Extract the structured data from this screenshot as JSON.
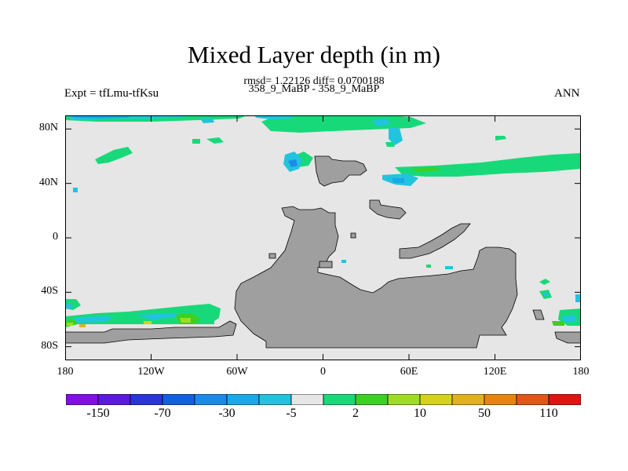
{
  "title": "Mixed Layer depth (in m)",
  "subtitle_stats": "rmsd= 1.22126 diff= 0.0700188",
  "subtitle_cases": "358_9_MaBP - 358_9_MaBP",
  "left_label": "Expt = tfLmu-tfKsu",
  "right_label": "ANN",
  "map": {
    "projection": "cylindrical equidistant",
    "lon_range": [
      -180,
      180
    ],
    "lat_range": [
      -90,
      90
    ],
    "y_ticks": [
      {
        "lat": 80,
        "label": "80N"
      },
      {
        "lat": 40,
        "label": "40N"
      },
      {
        "lat": 0,
        "label": "0"
      },
      {
        "lat": -40,
        "label": "40S"
      },
      {
        "lat": -80,
        "label": "80S"
      }
    ],
    "x_ticks": [
      {
        "lon": -180,
        "label": "180"
      },
      {
        "lon": -120,
        "label": "120W"
      },
      {
        "lon": -60,
        "label": "60W"
      },
      {
        "lon": 0,
        "label": "0"
      },
      {
        "lon": 60,
        "label": "60E"
      },
      {
        "lon": 120,
        "label": "120E"
      },
      {
        "lon": 180,
        "label": "180"
      }
    ],
    "background_color": "#e6e6e6",
    "land_color": "#9f9f9f"
  },
  "colorbar": {
    "colors": [
      "#7f0fe6",
      "#5a19e0",
      "#2a34d9",
      "#145fe0",
      "#1e8ae8",
      "#19a8e8",
      "#22c4dd",
      "#e6e6e6",
      "#17d97a",
      "#3ecf24",
      "#9fdc24",
      "#d4d219",
      "#e1b21c",
      "#e5850f",
      "#e3551b",
      "#e11414"
    ],
    "labels": [
      {
        "boundary": 1,
        "text": "-150"
      },
      {
        "boundary": 3,
        "text": "-70"
      },
      {
        "boundary": 5,
        "text": "-30"
      },
      {
        "boundary": 7,
        "text": "-5"
      },
      {
        "boundary": 9,
        "text": "2"
      },
      {
        "boundary": 11,
        "text": "10"
      },
      {
        "boundary": 13,
        "text": "50"
      },
      {
        "boundary": 15,
        "text": "110"
      }
    ]
  }
}
